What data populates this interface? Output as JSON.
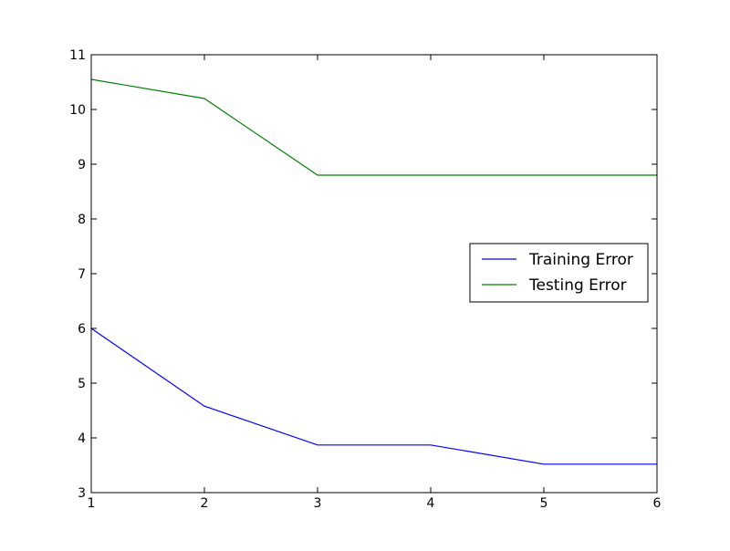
{
  "chart_data": {
    "type": "line",
    "title": "",
    "xlabel": "",
    "ylabel": "",
    "x": [
      1,
      2,
      3,
      4,
      5,
      6
    ],
    "xlim": [
      1,
      6
    ],
    "ylim": [
      3,
      11
    ],
    "xticks": [
      1,
      2,
      3,
      4,
      5,
      6
    ],
    "yticks": [
      3,
      4,
      5,
      6,
      7,
      8,
      9,
      10,
      11
    ],
    "grid": false,
    "legend_position": "right",
    "series": [
      {
        "name": "Training Error",
        "color": "#0000ff",
        "values": [
          6.0,
          4.58,
          3.87,
          3.87,
          3.52,
          3.52
        ]
      },
      {
        "name": "Testing Error",
        "color": "#008000",
        "values": [
          10.55,
          10.2,
          8.8,
          8.8,
          8.8,
          8.8
        ]
      }
    ]
  }
}
